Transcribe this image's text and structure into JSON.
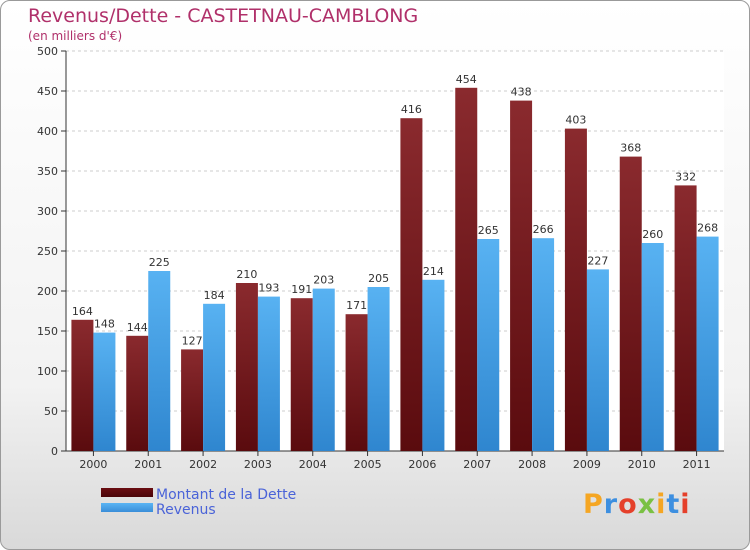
{
  "chart_data": {
    "type": "bar",
    "title": "Revenus/Dette - CASTETNAU-CAMBLONG",
    "subtitle": "(en milliers d'€)",
    "xlabel": "",
    "ylabel": "",
    "ylim": [
      0,
      500
    ],
    "yticks": [
      0,
      50,
      100,
      150,
      200,
      250,
      300,
      350,
      400,
      450,
      500
    ],
    "categories": [
      "2000",
      "2001",
      "2002",
      "2003",
      "2004",
      "2005",
      "2006",
      "2007",
      "2008",
      "2009",
      "2010",
      "2011"
    ],
    "series": [
      {
        "name": "Montant de la Dette",
        "color": "#7a1a1e",
        "values": [
          164,
          144,
          127,
          210,
          191,
          171,
          416,
          454,
          438,
          403,
          368,
          332
        ]
      },
      {
        "name": "Revenus",
        "color": "#4aa3e8",
        "values": [
          148,
          225,
          184,
          193,
          203,
          205,
          214,
          265,
          266,
          227,
          260,
          268
        ]
      }
    ],
    "grid": true,
    "legend_position": "bottom-left"
  },
  "branding": {
    "logo_letters": [
      "P",
      "r",
      "o",
      "x",
      "i",
      "t",
      "i"
    ],
    "logo_colors": [
      "#f5a623",
      "#3d8fe0",
      "#e5402b",
      "#7ac143",
      "#f5a623",
      "#3d8fe0",
      "#e5402b"
    ]
  }
}
